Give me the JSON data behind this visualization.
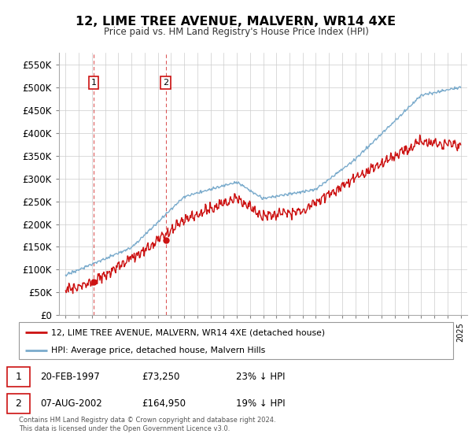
{
  "title": "12, LIME TREE AVENUE, MALVERN, WR14 4XE",
  "subtitle": "Price paid vs. HM Land Registry's House Price Index (HPI)",
  "legend_line1": "12, LIME TREE AVENUE, MALVERN, WR14 4XE (detached house)",
  "legend_line2": "HPI: Average price, detached house, Malvern Hills",
  "footnote": "Contains HM Land Registry data © Crown copyright and database right 2024.\nThis data is licensed under the Open Government Licence v3.0.",
  "sale1_date": "20-FEB-1997",
  "sale1_price": "£73,250",
  "sale1_hpi": "23% ↓ HPI",
  "sale2_date": "07-AUG-2002",
  "sale2_price": "£164,950",
  "sale2_hpi": "19% ↓ HPI",
  "sale1_x": 1997.13,
  "sale1_y": 73250,
  "sale2_x": 2002.6,
  "sale2_y": 164950,
  "hpi_color": "#7aabcc",
  "price_color": "#cc1111",
  "ylim_min": 0,
  "ylim_max": 575000,
  "yticks": [
    0,
    50000,
    100000,
    150000,
    200000,
    250000,
    300000,
    350000,
    400000,
    450000,
    500000,
    550000
  ],
  "xlim_min": 1994.5,
  "xlim_max": 2025.5,
  "background_color": "#ffffff",
  "grid_color": "#cccccc"
}
